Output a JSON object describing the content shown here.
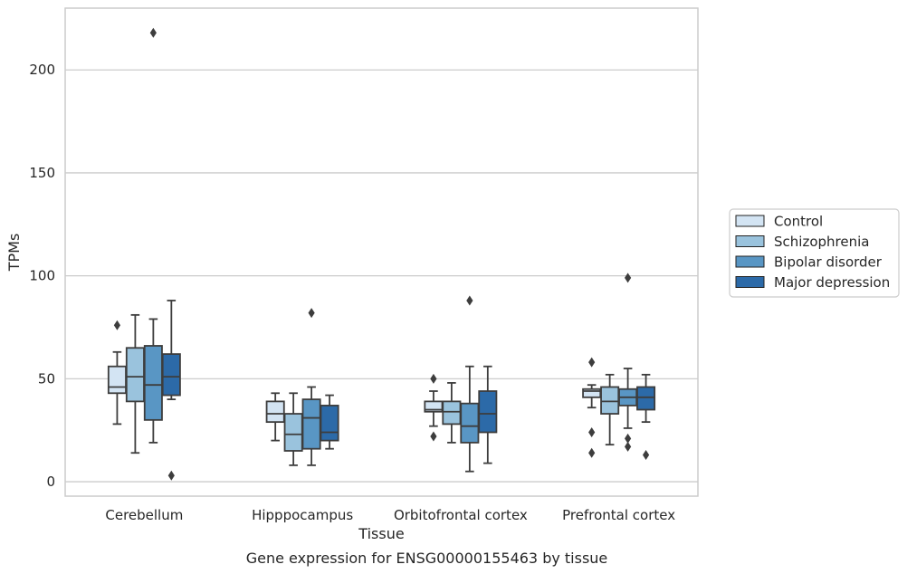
{
  "caption": "Gene expression for ENSG00000155463 by tissue",
  "chart_data": {
    "type": "boxplot",
    "title": "",
    "xlabel": "Tissue",
    "ylabel": "TPMs",
    "ylim": [
      -7,
      230
    ],
    "yticks": [
      0,
      50,
      100,
      150,
      200
    ],
    "grid": "horizontal",
    "legend_position": "right",
    "categories": [
      "Cerebellum",
      "Hipppocampus",
      "Orbitofrontal cortex",
      "Prefrontal cortex"
    ],
    "series": [
      {
        "name": "Control",
        "color": "#d3e4f3",
        "boxes": [
          {
            "whislo": 28,
            "q1": 43,
            "med": 46,
            "q3": 56,
            "whishi": 63,
            "fliers": [
              76
            ]
          },
          {
            "whislo": 20,
            "q1": 29,
            "med": 33,
            "q3": 39,
            "whishi": 43,
            "fliers": []
          },
          {
            "whislo": 27,
            "q1": 34,
            "med": 35,
            "q3": 39,
            "whishi": 44,
            "fliers": [
              50,
              22
            ]
          },
          {
            "whislo": 36,
            "q1": 41,
            "med": 44,
            "q3": 45,
            "whishi": 47,
            "fliers": [
              58,
              24,
              14
            ]
          }
        ]
      },
      {
        "name": "Schizophrenia",
        "color": "#9ac3dd",
        "boxes": [
          {
            "whislo": 14,
            "q1": 39,
            "med": 51,
            "q3": 65,
            "whishi": 81,
            "fliers": []
          },
          {
            "whislo": 8,
            "q1": 15,
            "med": 23,
            "q3": 33,
            "whishi": 43,
            "fliers": []
          },
          {
            "whislo": 19,
            "q1": 28,
            "med": 34,
            "q3": 39,
            "whishi": 48,
            "fliers": []
          },
          {
            "whislo": 18,
            "q1": 33,
            "med": 39,
            "q3": 46,
            "whishi": 52,
            "fliers": []
          }
        ]
      },
      {
        "name": "Bipolar disorder",
        "color": "#5996c4",
        "boxes": [
          {
            "whislo": 19,
            "q1": 30,
            "med": 47,
            "q3": 66,
            "whishi": 79,
            "fliers": [
              218
            ]
          },
          {
            "whislo": 8,
            "q1": 16,
            "med": 31,
            "q3": 40,
            "whishi": 46,
            "fliers": [
              82
            ]
          },
          {
            "whislo": 5,
            "q1": 19,
            "med": 27,
            "q3": 38,
            "whishi": 56,
            "fliers": [
              88
            ]
          },
          {
            "whislo": 26,
            "q1": 37,
            "med": 41,
            "q3": 45,
            "whishi": 55,
            "fliers": [
              99,
              21,
              17
            ]
          }
        ]
      },
      {
        "name": "Major depression",
        "color": "#2c6aa8",
        "boxes": [
          {
            "whislo": 40,
            "q1": 42,
            "med": 51,
            "q3": 62,
            "whishi": 88,
            "fliers": [
              3
            ]
          },
          {
            "whislo": 16,
            "q1": 20,
            "med": 24,
            "q3": 37,
            "whishi": 42,
            "fliers": []
          },
          {
            "whislo": 9,
            "q1": 24,
            "med": 33,
            "q3": 44,
            "whishi": 56,
            "fliers": []
          },
          {
            "whislo": 29,
            "q1": 35,
            "med": 41,
            "q3": 46,
            "whishi": 52,
            "fliers": [
              13
            ]
          }
        ]
      }
    ]
  }
}
